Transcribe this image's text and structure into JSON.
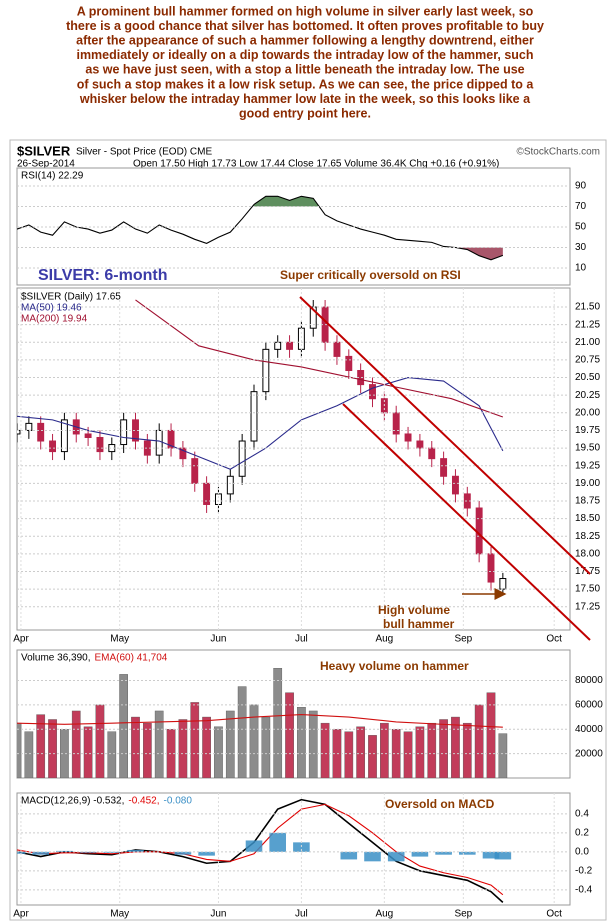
{
  "header": {
    "lines": [
      "A prominent bull hammer formed on high volume in silver early last week, so",
      "there is a good chance that silver has bottomed. It often proves profitable to buy",
      "after the appearance of such a hammer following a lengthy downtrend, either",
      "immediately or ideally on a dip towards the intraday low of the hammer, such",
      "as we have just seen, with a stop a little beneath the intraday low. The use",
      "of such a stop makes it a low risk setup. As we can see, the price dipped to a",
      "whisker below the intraday hammer low late in the week, so this looks like a",
      "good entry point here."
    ]
  },
  "chart_header": {
    "symbol": "$SILVER",
    "name": "Silver - Spot Price (EOD) CME",
    "credit": "©StockCharts.com",
    "date": "26-Sep-2014",
    "quote": "Open 17.50 High 17.73 Low 17.44 Close 17.65 Volume 36.4K Chg +0.16 (+0.91%)"
  },
  "chart_data": [
    {
      "type": "line",
      "x": [
        0,
        3,
        6,
        9,
        12,
        15,
        18,
        21,
        24,
        27,
        30,
        33,
        36,
        39,
        42,
        45,
        48,
        51,
        54,
        57,
        60,
        63,
        66,
        69,
        72,
        75,
        78,
        81,
        84,
        87,
        90,
        93,
        96,
        99,
        102,
        105,
        108,
        111,
        114,
        117,
        120,
        123
      ],
      "series": [
        {
          "name": "RSI(14) 22.29",
          "color": "#000000",
          "values": [
            48,
            52,
            45,
            42,
            55,
            50,
            48,
            44,
            47,
            55,
            48,
            44,
            52,
            47,
            43,
            38,
            34,
            40,
            45,
            58,
            72,
            80,
            80,
            76,
            80,
            78,
            62,
            56,
            52,
            48,
            45,
            42,
            38,
            37,
            36,
            35,
            31,
            30,
            28,
            22,
            18,
            22.29
          ]
        }
      ],
      "fill_above": {
        "level": 70,
        "color": "#5f8f5f"
      },
      "fill_below": {
        "level": 30,
        "color": "#a8566a"
      },
      "xlim": [
        0,
        140
      ],
      "ylim": [
        -6.6,
        107.6
      ],
      "yticks": [
        10,
        30,
        50,
        70,
        90
      ],
      "grid": true,
      "annotations": [
        "SILVER: 6-month",
        "Super critically oversold on RSI"
      ]
    },
    {
      "type": "candlestick",
      "title": "$SILVER (Daily) 17.65",
      "x": [
        0,
        3,
        6,
        9,
        12,
        15,
        18,
        21,
        24,
        27,
        30,
        33,
        36,
        39,
        42,
        45,
        48,
        51,
        54,
        57,
        60,
        63,
        66,
        69,
        72,
        75,
        78,
        81,
        84,
        87,
        90,
        93,
        96,
        99,
        102,
        105,
        108,
        111,
        114,
        117,
        120,
        123
      ],
      "open": [
        19.7,
        19.75,
        19.85,
        19.6,
        19.45,
        19.9,
        19.7,
        19.65,
        19.45,
        19.55,
        19.9,
        19.6,
        19.4,
        19.75,
        19.5,
        19.35,
        19.0,
        18.7,
        18.85,
        19.1,
        19.6,
        20.3,
        20.9,
        21.0,
        20.9,
        21.2,
        21.5,
        21.0,
        20.8,
        20.6,
        20.4,
        20.2,
        20.0,
        19.7,
        19.6,
        19.5,
        19.35,
        19.1,
        18.85,
        18.65,
        18.0,
        17.5
      ],
      "high": [
        19.85,
        19.95,
        19.95,
        19.7,
        20.0,
        20.0,
        19.8,
        19.75,
        19.65,
        20.0,
        20.0,
        19.7,
        19.85,
        19.85,
        19.6,
        19.45,
        19.1,
        18.95,
        19.2,
        19.7,
        20.4,
        21.0,
        21.1,
        21.1,
        21.3,
        21.6,
        21.6,
        21.1,
        20.9,
        20.7,
        20.5,
        20.3,
        20.1,
        19.8,
        19.7,
        19.6,
        19.45,
        19.2,
        18.95,
        18.75,
        18.1,
        17.73
      ],
      "low": [
        19.58,
        19.63,
        19.48,
        19.33,
        19.33,
        19.58,
        19.53,
        19.33,
        19.33,
        19.43,
        19.48,
        19.28,
        19.28,
        19.38,
        19.23,
        18.88,
        18.58,
        18.58,
        18.73,
        18.98,
        19.48,
        20.18,
        20.78,
        20.78,
        20.78,
        21.08,
        20.88,
        20.68,
        20.48,
        20.28,
        20.08,
        19.88,
        19.58,
        19.48,
        19.38,
        19.23,
        18.98,
        18.73,
        18.53,
        17.88,
        17.48,
        17.44
      ],
      "close": [
        19.75,
        19.85,
        19.6,
        19.45,
        19.9,
        19.7,
        19.65,
        19.45,
        19.55,
        19.9,
        19.6,
        19.4,
        19.75,
        19.5,
        19.35,
        19.0,
        18.7,
        18.85,
        19.1,
        19.6,
        20.3,
        20.9,
        21.0,
        20.9,
        21.2,
        21.5,
        21.0,
        20.8,
        20.6,
        20.4,
        20.2,
        20.0,
        19.7,
        19.6,
        19.5,
        19.35,
        19.1,
        18.85,
        18.65,
        18.0,
        17.6,
        17.65
      ],
      "up_color": "#000000",
      "down_color": "#b8234a",
      "series": [
        {
          "name": "MA(50) 19.46",
          "color": "#2b2b8c",
          "x": [
            0,
            9,
            18,
            27,
            36,
            45,
            54,
            63,
            72,
            81,
            90,
            99,
            108,
            117,
            123
          ],
          "values": [
            19.95,
            19.9,
            19.75,
            19.65,
            19.6,
            19.4,
            19.2,
            19.5,
            19.9,
            20.1,
            20.35,
            20.5,
            20.45,
            20.1,
            19.46
          ]
        },
        {
          "name": "MA(200) 19.94",
          "color": "#a01030",
          "x": [
            30,
            46,
            60,
            72,
            93,
            110,
            123
          ],
          "values": [
            21.6,
            20.95,
            20.75,
            20.65,
            20.4,
            20.2,
            19.94
          ]
        }
      ],
      "xlim": [
        0,
        140
      ],
      "ylim": [
        16.92,
        21.77
      ],
      "yticks": [
        17.25,
        {
          "value": 17.5,
          "label": "17.50"
        },
        17.75,
        {
          "value": 18,
          "label": "18.00"
        },
        18.25,
        {
          "value": 18.5,
          "label": "18.50"
        },
        18.75,
        {
          "value": 19,
          "label": "19.00"
        },
        19.25,
        {
          "value": 19.5,
          "label": "19.50"
        },
        19.75,
        {
          "value": 20,
          "label": "20.00"
        },
        20.25,
        {
          "value": 20.5,
          "label": "20.50"
        },
        20.75,
        {
          "value": 21,
          "label": "21.00"
        },
        21.25,
        {
          "value": 21.5,
          "label": "21.50"
        }
      ],
      "xticks": [
        {
          "value": 1,
          "label": "Apr"
        },
        {
          "value": 26,
          "label": "May"
        },
        {
          "value": 51,
          "label": "Jun"
        },
        {
          "value": 72,
          "label": "Jul"
        },
        {
          "value": 93,
          "label": "Aug"
        },
        {
          "value": 113,
          "label": "Sep"
        },
        {
          "value": 136,
          "label": "Oct"
        }
      ],
      "grid": true,
      "annotations": [
        "High volume",
        "bull hammer"
      ]
    },
    {
      "type": "bar",
      "name": "Volume 36,390,",
      "x": [
        0,
        3,
        6,
        9,
        12,
        15,
        18,
        21,
        24,
        27,
        30,
        33,
        36,
        39,
        42,
        45,
        48,
        51,
        54,
        57,
        60,
        63,
        66,
        69,
        72,
        75,
        78,
        81,
        84,
        87,
        90,
        93,
        96,
        99,
        102,
        105,
        108,
        111,
        114,
        117,
        120,
        123
      ],
      "values": [
        45000,
        38000,
        52000,
        48000,
        40000,
        55000,
        42000,
        60000,
        38000,
        85000,
        50000,
        45000,
        55000,
        40000,
        48000,
        62000,
        50000,
        42000,
        55000,
        75000,
        60000,
        50000,
        90000,
        70000,
        58000,
        55000,
        45000,
        40000,
        38000,
        42000,
        35000,
        45000,
        40000,
        38000,
        42000,
        45000,
        48000,
        50000,
        45000,
        60000,
        70000,
        36390
      ],
      "color": "#c23c5a",
      "up_color": "#8c8c8c",
      "series": [
        {
          "name": "EMA(60) 41,704",
          "color": "#d01010",
          "x": [
            0,
            12,
            24,
            36,
            48,
            60,
            72,
            84,
            96,
            108,
            123
          ],
          "values": [
            45000,
            44000,
            45000,
            46000,
            47000,
            50000,
            52000,
            50000,
            46000,
            44000,
            41704
          ]
        }
      ],
      "xlim": [
        0,
        140
      ],
      "ylim": [
        0,
        105000
      ],
      "yticks": [
        20000,
        40000,
        60000,
        80000
      ],
      "grid": true,
      "annotations": [
        "Heavy volume on hammer"
      ]
    },
    {
      "type": "line",
      "x": [
        0,
        6,
        12,
        18,
        24,
        30,
        36,
        42,
        48,
        54,
        60,
        66,
        72,
        78,
        84,
        90,
        96,
        102,
        108,
        114,
        120,
        123
      ],
      "series": [
        {
          "name": "MACD(12,26,9) -0.532,",
          "color": "#000000",
          "values": [
            0.0,
            -0.05,
            0.0,
            -0.02,
            -0.03,
            0.02,
            0.0,
            -0.05,
            -0.12,
            -0.1,
            0.1,
            0.45,
            0.55,
            0.5,
            0.3,
            0.1,
            -0.1,
            -0.2,
            -0.25,
            -0.3,
            -0.42,
            -0.532
          ]
        },
        {
          "name": "-0.452,",
          "color": "#e00000",
          "values": [
            0.02,
            -0.02,
            -0.01,
            -0.01,
            -0.02,
            0.0,
            0.0,
            -0.02,
            -0.08,
            -0.1,
            -0.02,
            0.25,
            0.45,
            0.5,
            0.38,
            0.2,
            0.0,
            -0.15,
            -0.22,
            -0.27,
            -0.35,
            -0.452
          ]
        },
        {
          "name": "-0.080",
          "color": "#3a8fc6",
          "style": "bar",
          "values": [
            -0.02,
            -0.03,
            0.01,
            -0.01,
            -0.01,
            0.02,
            0.0,
            -0.03,
            -0.04,
            0.0,
            0.12,
            0.2,
            0.1,
            0.0,
            -0.08,
            -0.1,
            -0.1,
            -0.05,
            -0.03,
            -0.03,
            -0.07,
            -0.08
          ]
        }
      ],
      "xlim": [
        0,
        140
      ],
      "ylim": [
        -0.56,
        0.62
      ],
      "yticks": [
        0.4,
        0.2,
        {
          "value": 0,
          "label": "0.0"
        },
        -0.2,
        -0.4
      ],
      "xticks": [
        {
          "value": 1,
          "label": "Apr"
        },
        {
          "value": 26,
          "label": "May"
        },
        {
          "value": 51,
          "label": "Jun"
        },
        {
          "value": 72,
          "label": "Jul"
        },
        {
          "value": 93,
          "label": "Aug"
        },
        {
          "value": 113,
          "label": "Sep"
        },
        {
          "value": 136,
          "label": "Oct"
        }
      ],
      "grid": true,
      "annotations": [
        "Oversold on MACD"
      ]
    }
  ]
}
